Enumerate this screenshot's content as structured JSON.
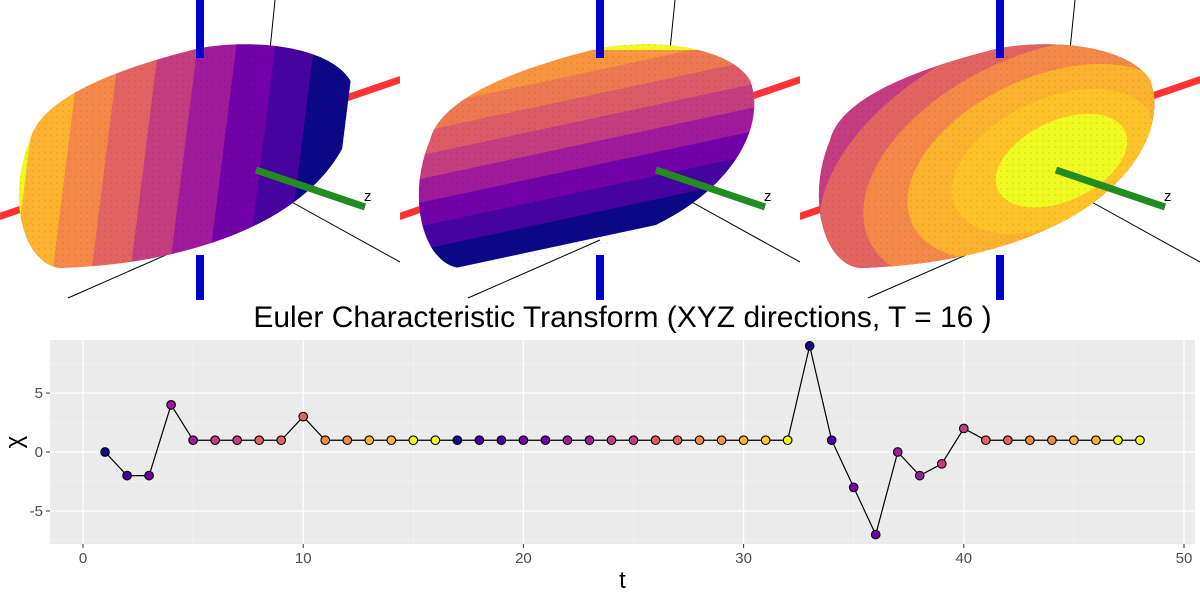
{
  "panels": [
    {
      "name": "ect-direction-x",
      "axis_letter": "z",
      "colors": [
        "#f0f921",
        "#fdb32f",
        "#f48849",
        "#e16462",
        "#c33d80",
        "#a01a9c",
        "#7201a8",
        "#46039f",
        "#0d0887"
      ]
    },
    {
      "name": "ect-direction-y",
      "axis_letter": "z",
      "colors": [
        "#f0f921",
        "#fccd25",
        "#fdb32f",
        "#f89540",
        "#ed7953",
        "#db5c68",
        "#c33d80",
        "#a01a9c",
        "#7201a8",
        "#46039f",
        "#0d0887"
      ]
    },
    {
      "name": "ect-direction-z",
      "axis_letter": "z",
      "colors": [
        "#c33d80",
        "#e16462",
        "#f48849",
        "#fbb32f",
        "#fdc328",
        "#f0f921"
      ]
    }
  ],
  "axis_colors": {
    "vertical": "#0000cd",
    "horizontal": "#ff3333",
    "depth": "#228b22"
  },
  "chart_data": {
    "type": "scatter",
    "title": "Euler Characteristic Transform (XYZ directions, T = 16 )",
    "xlabel": "t",
    "ylabel": "χ",
    "xlim": [
      -1.5,
      50.5
    ],
    "ylim": [
      -7.8,
      9.5
    ],
    "xticks": [
      0,
      10,
      20,
      30,
      40,
      50
    ],
    "yticks": [
      -5,
      0,
      5
    ],
    "grid": true,
    "connected_line": true,
    "x": [
      1,
      2,
      3,
      4,
      5,
      6,
      7,
      8,
      9,
      10,
      11,
      12,
      13,
      14,
      15,
      16,
      17,
      18,
      19,
      20,
      21,
      22,
      23,
      24,
      25,
      26,
      27,
      28,
      29,
      30,
      31,
      32,
      33,
      34,
      35,
      36,
      37,
      38,
      39,
      40,
      41,
      42,
      43,
      44,
      45,
      46,
      47,
      48
    ],
    "y": [
      0,
      -2,
      -2,
      4,
      1,
      1,
      1,
      1,
      1,
      3,
      1,
      1,
      1,
      1,
      1,
      1,
      1,
      1,
      1,
      1,
      1,
      1,
      1,
      1,
      1,
      1,
      1,
      1,
      1,
      1,
      1,
      1,
      9,
      1,
      -3,
      -7,
      0,
      -2,
      -1,
      2,
      1,
      1,
      1,
      1,
      1,
      1,
      1,
      1
    ],
    "point_colors": [
      "#0d0887",
      "#46039f",
      "#7201a8",
      "#a01a9c",
      "#a01a9c",
      "#c33d80",
      "#c33d80",
      "#e16462",
      "#e16462",
      "#e16462",
      "#f48849",
      "#f48849",
      "#fdb32f",
      "#fdb32f",
      "#f0f921",
      "#f0f921",
      "#0d0887",
      "#46039f",
      "#46039f",
      "#7201a8",
      "#7201a8",
      "#a01a9c",
      "#a01a9c",
      "#c33d80",
      "#c33d80",
      "#db5c68",
      "#e16462",
      "#f48849",
      "#f89540",
      "#fdb32f",
      "#fccd25",
      "#f0f921",
      "#0d0887",
      "#46039f",
      "#7201a8",
      "#7201a8",
      "#a01a9c",
      "#a01a9c",
      "#c33d80",
      "#c33d80",
      "#e16462",
      "#e16462",
      "#f48849",
      "#f48849",
      "#fdb32f",
      "#fdb32f",
      "#f0f921",
      "#f0f921"
    ]
  }
}
